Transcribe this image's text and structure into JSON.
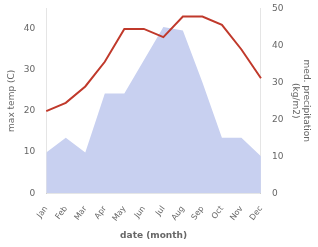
{
  "chart_data": {
    "type": "line",
    "xlabel": "date (month)",
    "ylabel": "max temp (C)",
    "y2label": "med. precipitation\n(kg/m2)",
    "categories": [
      "Jan",
      "Feb",
      "Mar",
      "Apr",
      "May",
      "Jun",
      "Jul",
      "Aug",
      "Sep",
      "Oct",
      "Nov",
      "Dec"
    ],
    "series": [
      {
        "type": "area",
        "color": "#c8d0f0",
        "axis": "y2",
        "values": [
          11,
          15,
          11,
          27,
          27,
          36,
          45,
          44,
          30,
          15,
          15,
          10
        ]
      },
      {
        "type": "line",
        "color": "#c0392b",
        "values": [
          20,
          22,
          26,
          32,
          40,
          40,
          38,
          43,
          43,
          41,
          35,
          28
        ]
      }
    ],
    "ylim": [
      0,
      45
    ],
    "yticks": [
      0,
      10,
      20,
      30,
      40
    ],
    "y2lim": [
      0,
      50
    ],
    "y2ticks": [
      0,
      10,
      20,
      30,
      40,
      50
    ],
    "grid": false
  }
}
